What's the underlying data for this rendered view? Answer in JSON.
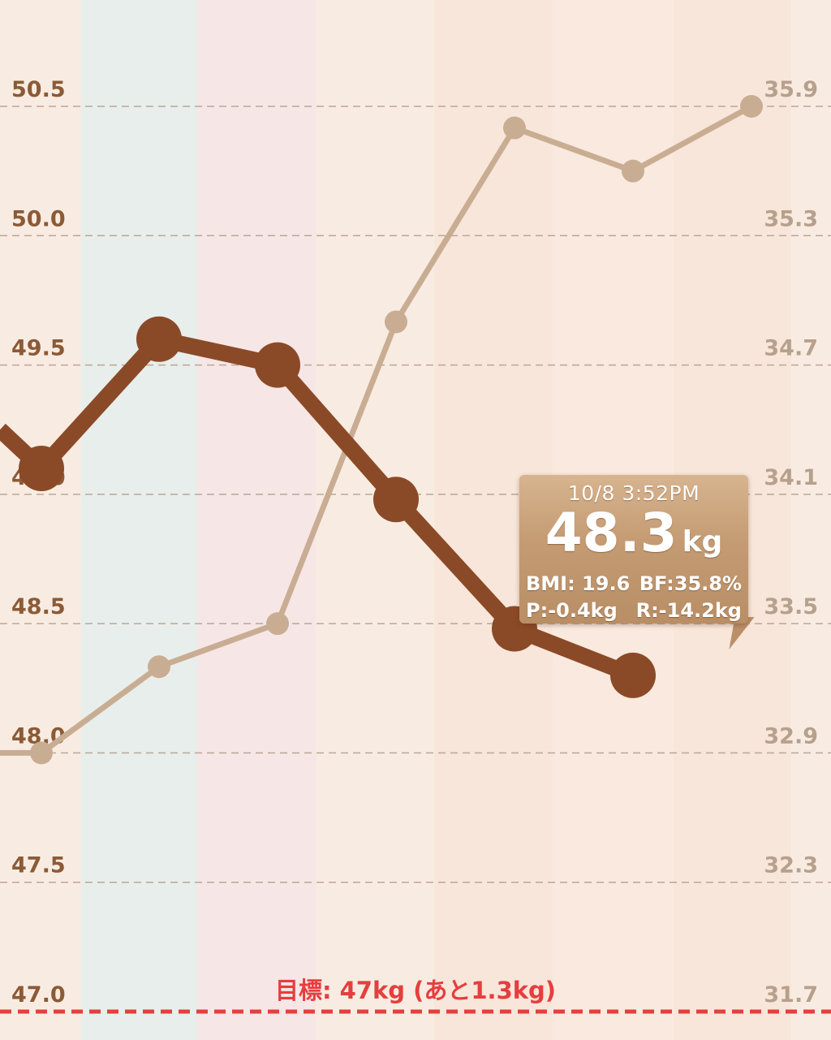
{
  "chart_data": {
    "type": "line",
    "goal_line": {
      "value": 47.0,
      "label": "目標: 47kg (あと1.3kg)",
      "color": "#e63e3e"
    },
    "left_axis": {
      "ticks": [
        "50.5",
        "50.0",
        "49.5",
        "49.0",
        "48.5",
        "48.0",
        "47.5",
        "47.0"
      ],
      "range": [
        47.0,
        50.5
      ]
    },
    "right_axis": {
      "ticks": [
        "35.9",
        "35.3",
        "34.7",
        "34.1",
        "33.5",
        "32.9",
        "32.3",
        "31.7"
      ],
      "range": [
        31.7,
        35.9
      ]
    },
    "series": [
      {
        "axis": "left",
        "color": "#8b4a27",
        "values": [
          49.25,
          49.1,
          49.6,
          49.5,
          48.98,
          48.48,
          48.3
        ]
      },
      {
        "axis": "right",
        "color": "#c9ad93",
        "values": [
          32.9,
          32.9,
          33.3,
          33.5,
          34.9,
          35.8,
          35.6,
          35.9
        ]
      }
    ],
    "tooltip": {
      "date": "10/8 3:52PM",
      "value": "48.3",
      "unit": "kg",
      "bmi": "BMI: 19.6",
      "bf": "BF:35.8%",
      "p": "P:-0.4kg",
      "r": "R:-14.2kg"
    },
    "colors": {
      "background": "#f8ece2",
      "band_blue": "#e8eeeb",
      "band_pink": "#f7e6e6",
      "band_peach": "#f8e6da",
      "tick_left": "#8c5a35",
      "tick_right": "#b7a08c"
    }
  }
}
